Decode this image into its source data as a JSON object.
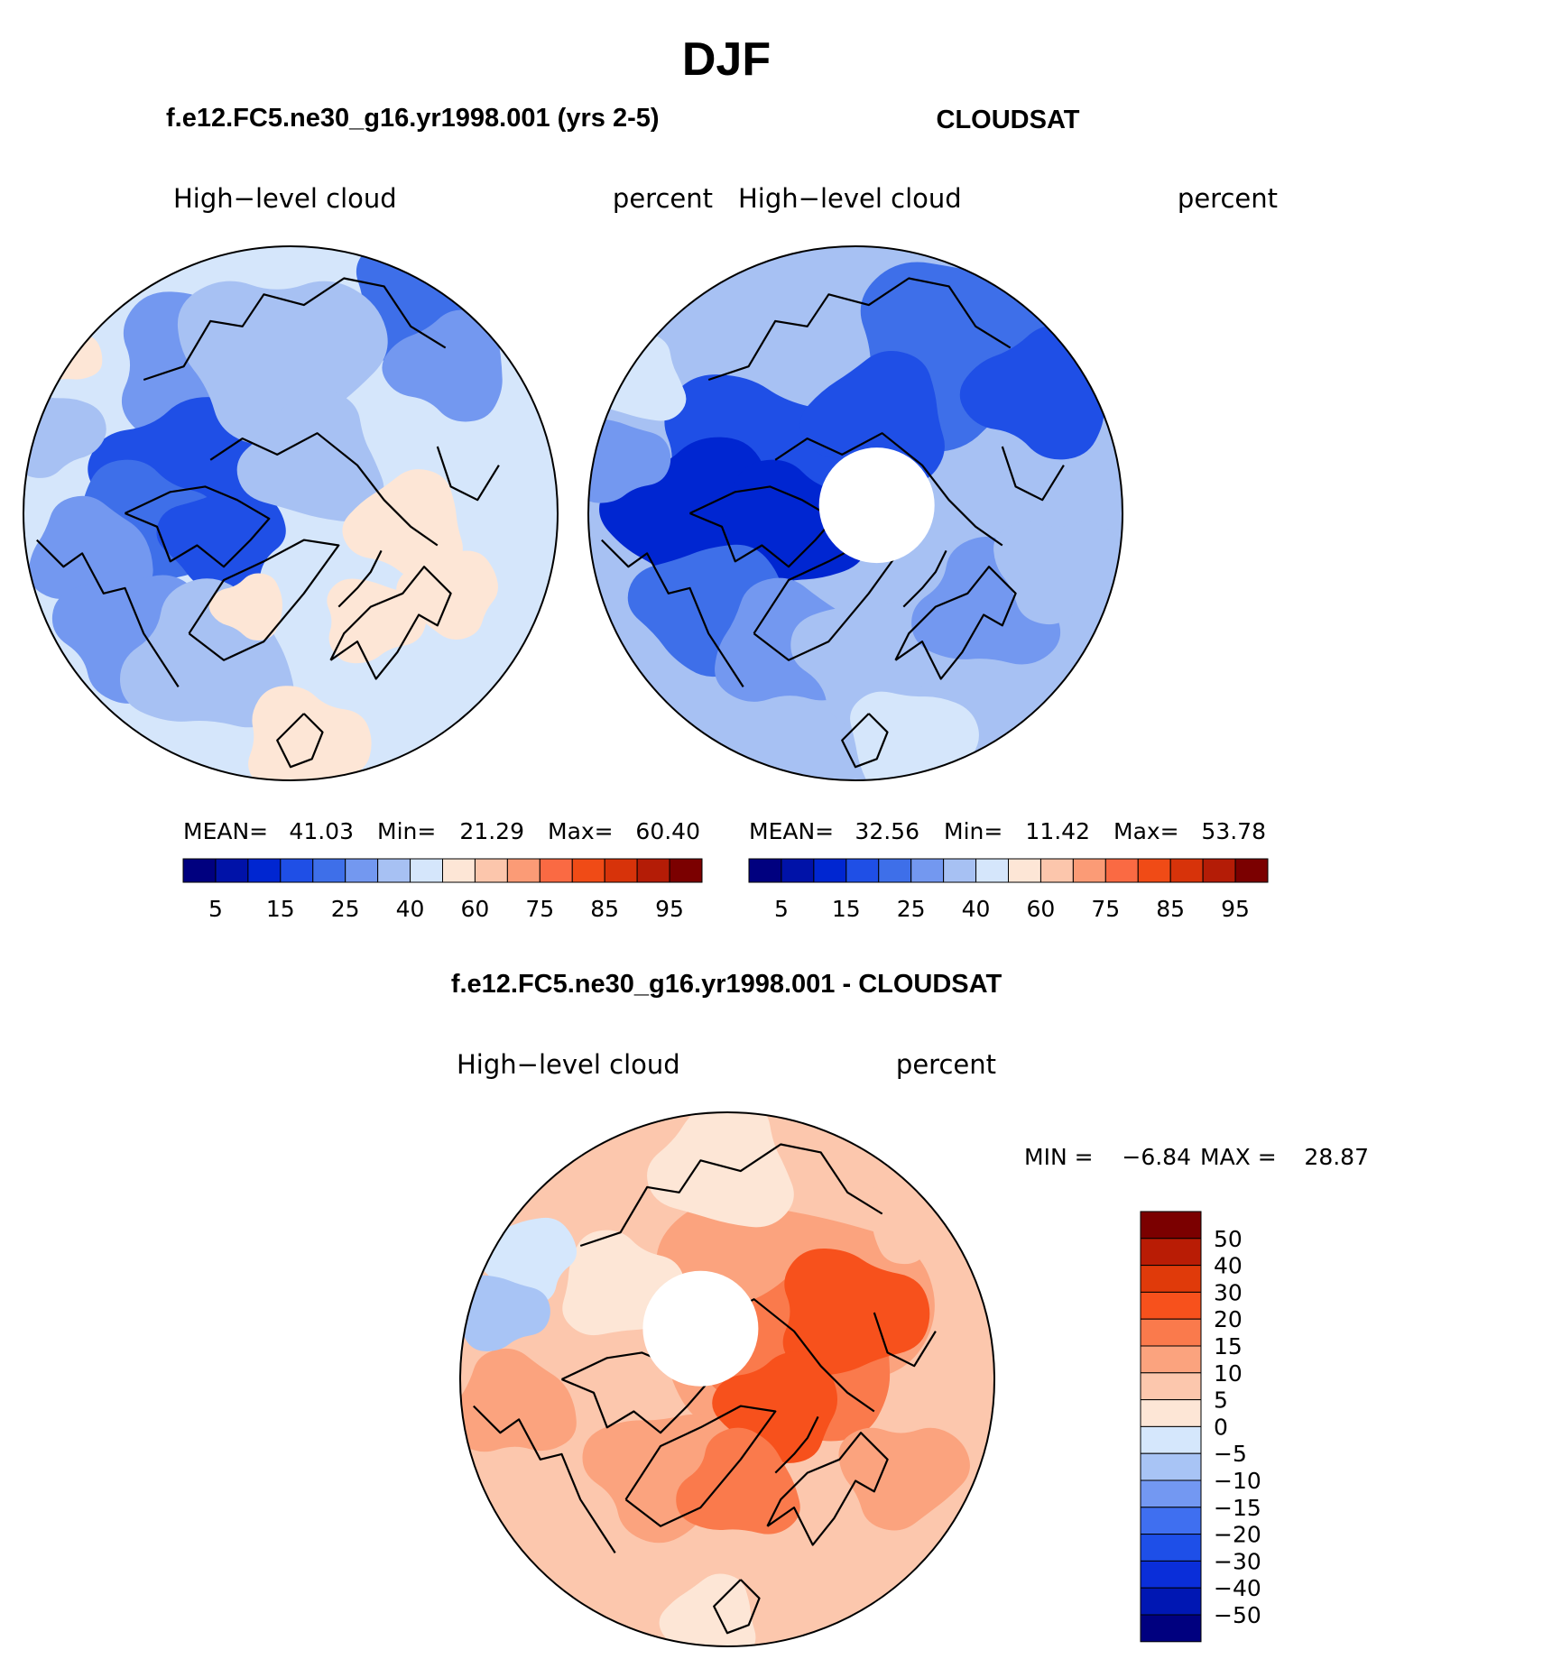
{
  "figure": {
    "title": "DJF"
  },
  "colors": {
    "cloud_palette": [
      "#00007f",
      "#0012a8",
      "#0026d1",
      "#1f4fe6",
      "#3e6fe9",
      "#7398f0",
      "#a7c1f3",
      "#d5e6fb",
      "#fde6d6",
      "#fcc6ac",
      "#fb9b76",
      "#fa6a43",
      "#f04b16",
      "#d7330a",
      "#b41c06",
      "#7b0000"
    ],
    "diff_palette": [
      "#00007f",
      "#0017b3",
      "#0a2ed9",
      "#1e4fe8",
      "#3f6ff0",
      "#7398f2",
      "#a8c4f5",
      "#d5e7fc",
      "#fde6d6",
      "#fcc7ad",
      "#fba37e",
      "#fa7a4c",
      "#f7511c",
      "#e03a0a",
      "#b91c05",
      "#7b0000"
    ],
    "coast": "#000000",
    "map_border": "#000000"
  },
  "chart_data": [
    {
      "type": "heatmap",
      "projection": "north-polar-stereographic",
      "title": "f.e12.FC5.ne30_g16.yr1998.001 (yrs 2-5)",
      "left_label": "High−level cloud",
      "right_label": "percent",
      "stats": {
        "mean_label": "MEAN=",
        "mean": "41.03",
        "min_label": "Min=",
        "min": "21.29",
        "max_label": "Max=",
        "max": "60.40"
      },
      "colorbar": {
        "orientation": "horizontal",
        "levels": [
          5,
          10,
          15,
          20,
          25,
          30,
          40,
          50,
          60,
          65,
          75,
          80,
          85,
          90,
          95
        ],
        "tick_labels": [
          "5",
          "15",
          "25",
          "40",
          "60",
          "75",
          "85",
          "95"
        ]
      },
      "field_range": [
        21.29,
        60.4
      ],
      "pole_hole": false
    },
    {
      "type": "heatmap",
      "projection": "north-polar-stereographic",
      "title": "CLOUDSAT",
      "left_label": "High−level cloud",
      "right_label": "percent",
      "stats": {
        "mean_label": "MEAN=",
        "mean": "32.56",
        "min_label": "Min=",
        "min": "11.42",
        "max_label": "Max=",
        "max": "53.78"
      },
      "colorbar": {
        "orientation": "horizontal",
        "levels": [
          5,
          10,
          15,
          20,
          25,
          30,
          40,
          50,
          60,
          65,
          75,
          80,
          85,
          90,
          95
        ],
        "tick_labels": [
          "5",
          "15",
          "25",
          "40",
          "60",
          "75",
          "85",
          "95"
        ]
      },
      "field_range": [
        11.42,
        53.78
      ],
      "pole_hole": true
    },
    {
      "type": "heatmap",
      "projection": "north-polar-stereographic",
      "title": "f.e12.FC5.ne30_g16.yr1998.001 - CLOUDSAT",
      "left_label": "High−level cloud",
      "right_label": "percent",
      "stats": {
        "min_label": "MIN =",
        "min": "−6.84",
        "max_label": "MAX =",
        "max": "28.87"
      },
      "colorbar": {
        "orientation": "vertical",
        "tick_labels": [
          "50",
          "40",
          "30",
          "20",
          "15",
          "10",
          "5",
          "0",
          "−5",
          "−10",
          "−15",
          "−20",
          "−30",
          "−40",
          "−50"
        ]
      },
      "field_range": [
        -6.84,
        28.87
      ],
      "pole_hole": true
    }
  ]
}
